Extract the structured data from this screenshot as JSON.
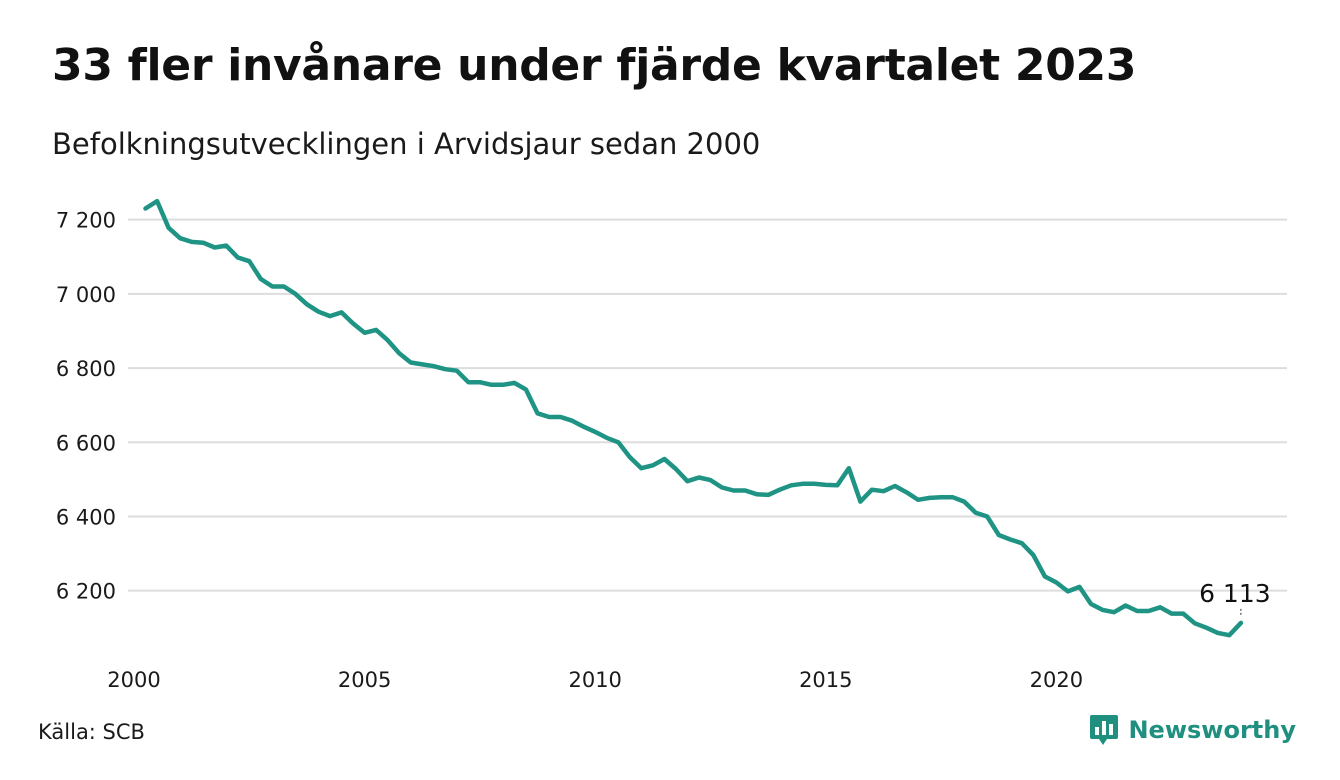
{
  "header": {
    "title": "33 fler invånare under fjärde kvartalet 2023",
    "subtitle": "Befolkningsutvecklingen i Arvidsjaur sedan 2000"
  },
  "footer": {
    "source": "Källa: SCB",
    "brand": "Newsworthy"
  },
  "colors": {
    "line": "#1f9484",
    "grid": "#dddddd",
    "brand": "#1f8f80"
  },
  "chart_data": {
    "type": "line",
    "title": "33 fler invånare under fjärde kvartalet 2023",
    "subtitle": "Befolkningsutvecklingen i Arvidsjaur sedan 2000",
    "xlabel": "",
    "ylabel": "",
    "grid": true,
    "xlim": [
      2000.0,
      2025.0
    ],
    "ylim": [
      6040,
      7280
    ],
    "x_ticks": [
      2000,
      2005,
      2010,
      2015,
      2020
    ],
    "x_tick_labels": [
      "2000",
      "2005",
      "2010",
      "2015",
      "2020"
    ],
    "y_ticks": [
      6200,
      6400,
      6600,
      6800,
      7000,
      7200
    ],
    "y_tick_labels": [
      "6 200",
      "6 400",
      "6 600",
      "6 800",
      "7 000",
      "7 200"
    ],
    "end_label": "6 113",
    "series": [
      {
        "x": [
          2000.25,
          2000.5,
          2000.75,
          2001.0,
          2001.25,
          2001.5,
          2001.75,
          2002.0,
          2002.25,
          2002.5,
          2002.75,
          2003.0,
          2003.25,
          2003.5,
          2003.75,
          2004.0,
          2004.25,
          2004.5,
          2004.75,
          2005.0,
          2005.25,
          2005.5,
          2005.75,
          2006.0,
          2006.25,
          2006.5,
          2006.75,
          2007.0,
          2007.25,
          2007.5,
          2007.75,
          2008.0,
          2008.25,
          2008.5,
          2008.75,
          2009.0,
          2009.25,
          2009.5,
          2009.75,
          2010.0,
          2010.25,
          2010.5,
          2010.75,
          2011.0,
          2011.25,
          2011.5,
          2011.75,
          2012.0,
          2012.25,
          2012.5,
          2012.75,
          2013.0,
          2013.25,
          2013.5,
          2013.75,
          2014.0,
          2014.25,
          2014.5,
          2014.75,
          2015.0,
          2015.25,
          2015.5,
          2015.75,
          2016.0,
          2016.25,
          2016.5,
          2016.75,
          2017.0,
          2017.25,
          2017.5,
          2017.75,
          2018.0,
          2018.25,
          2018.5,
          2018.75,
          2019.0,
          2019.25,
          2019.5,
          2019.75,
          2020.0,
          2020.25,
          2020.5,
          2020.75,
          2021.0,
          2021.25,
          2021.5,
          2021.75,
          2022.0,
          2022.25,
          2022.5,
          2022.75,
          2023.0,
          2023.25,
          2023.5,
          2023.75,
          2024.0
        ],
        "values": [
          7230,
          7250,
          7178,
          7150,
          7140,
          7138,
          7125,
          7130,
          7098,
          7088,
          7040,
          7020,
          7020,
          7000,
          6972,
          6952,
          6940,
          6950,
          6920,
          6895,
          6903,
          6875,
          6840,
          6815,
          6810,
          6805,
          6797,
          6793,
          6762,
          6762,
          6755,
          6755,
          6760,
          6742,
          6678,
          6668,
          6668,
          6658,
          6642,
          6628,
          6612,
          6600,
          6560,
          6530,
          6538,
          6555,
          6528,
          6495,
          6505,
          6498,
          6478,
          6470,
          6470,
          6460,
          6458,
          6472,
          6484,
          6488,
          6488,
          6485,
          6484,
          6530,
          6440,
          6472,
          6468,
          6482,
          6465,
          6445,
          6450,
          6452,
          6452,
          6440,
          6410,
          6400,
          6350,
          6338,
          6328,
          6296,
          6238,
          6222,
          6198,
          6210,
          6164,
          6148,
          6142,
          6160,
          6145,
          6145,
          6155,
          6138,
          6138,
          6112,
          6100,
          6086,
          6080,
          6113
        ]
      }
    ]
  }
}
